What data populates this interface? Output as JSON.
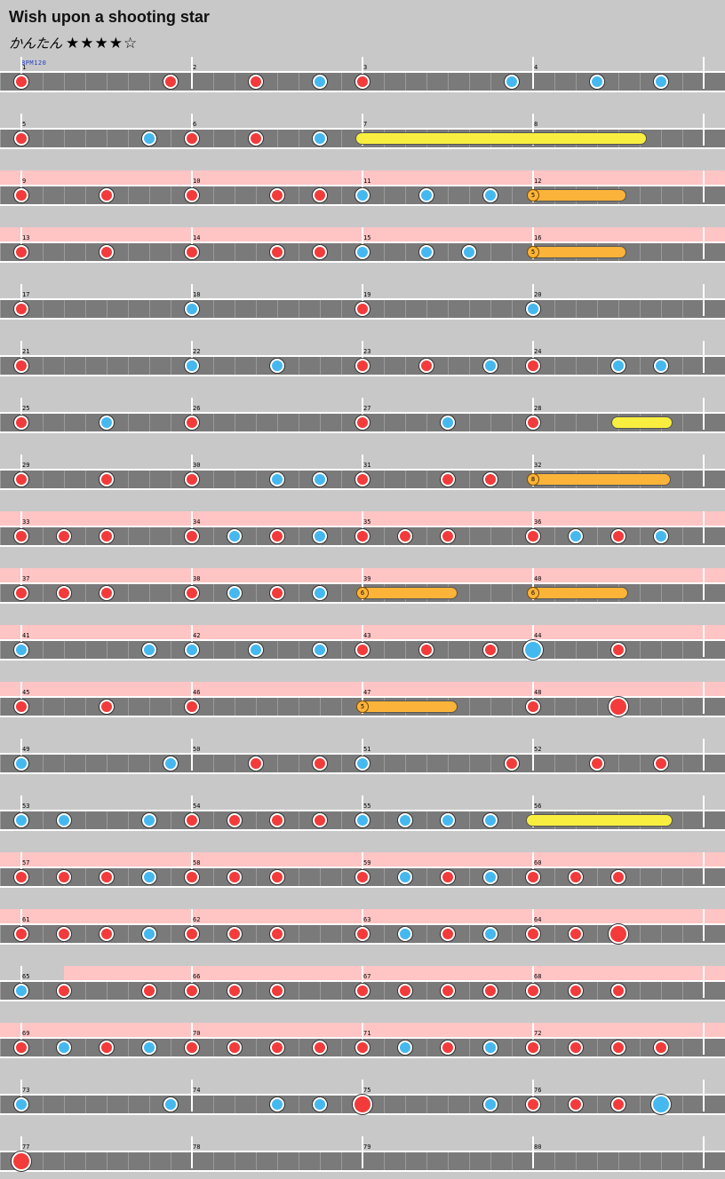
{
  "header": {
    "title": "Wish upon a shooting star",
    "difficulty": "かんたん",
    "stars": "★★★★☆",
    "bpm": "BPM120"
  },
  "colors": {
    "don": "#f33b3b",
    "ka": "#45b8f0",
    "roll": "#f8ee40",
    "balloon": "#fbb33a",
    "gogo": "#ffc4c4"
  },
  "rows": [
    {
      "measures": [
        1,
        2,
        3,
        4
      ],
      "gogo": false,
      "notes": [
        {
          "t": 0,
          "k": "d"
        },
        {
          "t": 7,
          "k": "d"
        },
        {
          "t": 11,
          "k": "d"
        },
        {
          "t": 14,
          "k": "k"
        },
        {
          "t": 16,
          "k": "d"
        },
        {
          "t": 23,
          "k": "k"
        },
        {
          "t": 27,
          "k": "k"
        },
        {
          "t": 30,
          "k": "k"
        }
      ]
    },
    {
      "measures": [
        5,
        6,
        7,
        8
      ],
      "gogo": false,
      "notes": [
        {
          "t": 0,
          "k": "d"
        },
        {
          "t": 6,
          "k": "k"
        },
        {
          "t": 8,
          "k": "d"
        },
        {
          "t": 11,
          "k": "d"
        },
        {
          "t": 14,
          "k": "k"
        }
      ],
      "rolls": [
        {
          "s": 16,
          "e": 29,
          "type": "yellow"
        }
      ]
    },
    {
      "measures": [
        9,
        10,
        11,
        12
      ],
      "gogo": true,
      "notes": [
        {
          "t": 0,
          "k": "d"
        },
        {
          "t": 4,
          "k": "d"
        },
        {
          "t": 8,
          "k": "d"
        },
        {
          "t": 12,
          "k": "d"
        },
        {
          "t": 14,
          "k": "d"
        },
        {
          "t": 16,
          "k": "k"
        },
        {
          "t": 19,
          "k": "k"
        },
        {
          "t": 22,
          "k": "k"
        }
      ],
      "rolls": [
        {
          "s": 24,
          "e": 28.2,
          "type": "balloon",
          "count": "5"
        }
      ]
    },
    {
      "measures": [
        13,
        14,
        15,
        16
      ],
      "gogo": true,
      "notes": [
        {
          "t": 0,
          "k": "d"
        },
        {
          "t": 4,
          "k": "d"
        },
        {
          "t": 8,
          "k": "d"
        },
        {
          "t": 12,
          "k": "d"
        },
        {
          "t": 14,
          "k": "d"
        },
        {
          "t": 16,
          "k": "k"
        },
        {
          "t": 19,
          "k": "k"
        },
        {
          "t": 21,
          "k": "k"
        }
      ],
      "rolls": [
        {
          "s": 24,
          "e": 28.2,
          "type": "balloon",
          "count": "5"
        }
      ]
    },
    {
      "measures": [
        17,
        18,
        19,
        20
      ],
      "gogo": false,
      "notes": [
        {
          "t": 0,
          "k": "d"
        },
        {
          "t": 8,
          "k": "k"
        },
        {
          "t": 16,
          "k": "d"
        },
        {
          "t": 24,
          "k": "k"
        }
      ]
    },
    {
      "measures": [
        21,
        22,
        23,
        24
      ],
      "gogo": false,
      "notes": [
        {
          "t": 0,
          "k": "d"
        },
        {
          "t": 8,
          "k": "k"
        },
        {
          "t": 12,
          "k": "k"
        },
        {
          "t": 16,
          "k": "d"
        },
        {
          "t": 19,
          "k": "d"
        },
        {
          "t": 22,
          "k": "k"
        },
        {
          "t": 24,
          "k": "d"
        },
        {
          "t": 28,
          "k": "k"
        },
        {
          "t": 30,
          "k": "k"
        }
      ]
    },
    {
      "measures": [
        25,
        26,
        27,
        28
      ],
      "gogo": false,
      "notes": [
        {
          "t": 0,
          "k": "d"
        },
        {
          "t": 4,
          "k": "k"
        },
        {
          "t": 8,
          "k": "d"
        },
        {
          "t": 16,
          "k": "d"
        },
        {
          "t": 20,
          "k": "k"
        },
        {
          "t": 24,
          "k": "d"
        }
      ],
      "rolls": [
        {
          "s": 28,
          "e": 30.2,
          "type": "yellow"
        }
      ]
    },
    {
      "measures": [
        29,
        30,
        31,
        32
      ],
      "gogo": false,
      "notes": [
        {
          "t": 0,
          "k": "d"
        },
        {
          "t": 4,
          "k": "d"
        },
        {
          "t": 8,
          "k": "d"
        },
        {
          "t": 12,
          "k": "k"
        },
        {
          "t": 14,
          "k": "k"
        },
        {
          "t": 16,
          "k": "d"
        },
        {
          "t": 20,
          "k": "d"
        },
        {
          "t": 22,
          "k": "d"
        }
      ],
      "rolls": [
        {
          "s": 24,
          "e": 30.3,
          "type": "balloon",
          "count": "8"
        }
      ]
    },
    {
      "measures": [
        33,
        34,
        35,
        36
      ],
      "gogo": true,
      "notes": [
        {
          "t": 0,
          "k": "d"
        },
        {
          "t": 2,
          "k": "d"
        },
        {
          "t": 4,
          "k": "d"
        },
        {
          "t": 8,
          "k": "d"
        },
        {
          "t": 10,
          "k": "k"
        },
        {
          "t": 12,
          "k": "d"
        },
        {
          "t": 14,
          "k": "k"
        },
        {
          "t": 16,
          "k": "d"
        },
        {
          "t": 18,
          "k": "d"
        },
        {
          "t": 20,
          "k": "d"
        },
        {
          "t": 24,
          "k": "d"
        },
        {
          "t": 26,
          "k": "k"
        },
        {
          "t": 28,
          "k": "d"
        },
        {
          "t": 30,
          "k": "k"
        }
      ]
    },
    {
      "measures": [
        37,
        38,
        39,
        40
      ],
      "gogo": true,
      "notes": [
        {
          "t": 0,
          "k": "d"
        },
        {
          "t": 2,
          "k": "d"
        },
        {
          "t": 4,
          "k": "d"
        },
        {
          "t": 8,
          "k": "d"
        },
        {
          "t": 10,
          "k": "k"
        },
        {
          "t": 12,
          "k": "d"
        },
        {
          "t": 14,
          "k": "k"
        }
      ],
      "rolls": [
        {
          "s": 16,
          "e": 20.3,
          "type": "balloon",
          "count": "6"
        },
        {
          "s": 24,
          "e": 28.3,
          "type": "balloon",
          "count": "6"
        }
      ]
    },
    {
      "measures": [
        41,
        42,
        43,
        44
      ],
      "gogo": true,
      "notes": [
        {
          "t": 0,
          "k": "k"
        },
        {
          "t": 6,
          "k": "k"
        },
        {
          "t": 8,
          "k": "k"
        },
        {
          "t": 11,
          "k": "k"
        },
        {
          "t": 14,
          "k": "k"
        },
        {
          "t": 16,
          "k": "d"
        },
        {
          "t": 19,
          "k": "d"
        },
        {
          "t": 22,
          "k": "d"
        },
        {
          "t": 24,
          "k": "K"
        },
        {
          "t": 28,
          "k": "d"
        }
      ]
    },
    {
      "measures": [
        45,
        46,
        47,
        48
      ],
      "gogo": true,
      "notes": [
        {
          "t": 0,
          "k": "d"
        },
        {
          "t": 4,
          "k": "d"
        },
        {
          "t": 8,
          "k": "d"
        },
        {
          "t": 24,
          "k": "d"
        },
        {
          "t": 28,
          "k": "D"
        }
      ],
      "rolls": [
        {
          "s": 16,
          "e": 20.3,
          "type": "balloon",
          "count": "5"
        }
      ]
    },
    {
      "measures": [
        49,
        50,
        51,
        52
      ],
      "gogo": false,
      "notes": [
        {
          "t": 0,
          "k": "k"
        },
        {
          "t": 7,
          "k": "k"
        },
        {
          "t": 11,
          "k": "d"
        },
        {
          "t": 14,
          "k": "d"
        },
        {
          "t": 16,
          "k": "k"
        },
        {
          "t": 23,
          "k": "d"
        },
        {
          "t": 27,
          "k": "d"
        },
        {
          "t": 30,
          "k": "d"
        }
      ]
    },
    {
      "measures": [
        53,
        54,
        55,
        56
      ],
      "gogo": false,
      "notes": [
        {
          "t": 0,
          "k": "k"
        },
        {
          "t": 2,
          "k": "k"
        },
        {
          "t": 6,
          "k": "k"
        },
        {
          "t": 8,
          "k": "d"
        },
        {
          "t": 10,
          "k": "d"
        },
        {
          "t": 12,
          "k": "d"
        },
        {
          "t": 14,
          "k": "d"
        },
        {
          "t": 16,
          "k": "k"
        },
        {
          "t": 18,
          "k": "k"
        },
        {
          "t": 20,
          "k": "k"
        },
        {
          "t": 22,
          "k": "k"
        }
      ],
      "rolls": [
        {
          "s": 24,
          "e": 30.2,
          "type": "yellow"
        }
      ]
    },
    {
      "measures": [
        57,
        58,
        59,
        60
      ],
      "gogo": true,
      "notes": [
        {
          "t": 0,
          "k": "d"
        },
        {
          "t": 2,
          "k": "d"
        },
        {
          "t": 4,
          "k": "d"
        },
        {
          "t": 6,
          "k": "k"
        },
        {
          "t": 8,
          "k": "d"
        },
        {
          "t": 10,
          "k": "d"
        },
        {
          "t": 12,
          "k": "d"
        },
        {
          "t": 16,
          "k": "d"
        },
        {
          "t": 18,
          "k": "k"
        },
        {
          "t": 20,
          "k": "d"
        },
        {
          "t": 22,
          "k": "k"
        },
        {
          "t": 24,
          "k": "d"
        },
        {
          "t": 26,
          "k": "d"
        },
        {
          "t": 28,
          "k": "d"
        }
      ]
    },
    {
      "measures": [
        61,
        62,
        63,
        64
      ],
      "gogo": true,
      "notes": [
        {
          "t": 0,
          "k": "d"
        },
        {
          "t": 2,
          "k": "d"
        },
        {
          "t": 4,
          "k": "d"
        },
        {
          "t": 6,
          "k": "k"
        },
        {
          "t": 8,
          "k": "d"
        },
        {
          "t": 10,
          "k": "d"
        },
        {
          "t": 12,
          "k": "d"
        },
        {
          "t": 16,
          "k": "d"
        },
        {
          "t": 18,
          "k": "k"
        },
        {
          "t": 20,
          "k": "d"
        },
        {
          "t": 22,
          "k": "k"
        },
        {
          "t": 24,
          "k": "d"
        },
        {
          "t": 26,
          "k": "d"
        },
        {
          "t": 28,
          "k": "D"
        }
      ]
    },
    {
      "measures": [
        65,
        66,
        67,
        68
      ],
      "gogo": true,
      "gogoStart": 2,
      "notes": [
        {
          "t": 0,
          "k": "k"
        },
        {
          "t": 2,
          "k": "d"
        },
        {
          "t": 6,
          "k": "d"
        },
        {
          "t": 8,
          "k": "d"
        },
        {
          "t": 10,
          "k": "d"
        },
        {
          "t": 12,
          "k": "d"
        },
        {
          "t": 16,
          "k": "d"
        },
        {
          "t": 18,
          "k": "d"
        },
        {
          "t": 20,
          "k": "d"
        },
        {
          "t": 22,
          "k": "d"
        },
        {
          "t": 24,
          "k": "d"
        },
        {
          "t": 26,
          "k": "d"
        },
        {
          "t": 28,
          "k": "d"
        }
      ]
    },
    {
      "measures": [
        69,
        70,
        71,
        72
      ],
      "gogo": true,
      "notes": [
        {
          "t": 0,
          "k": "d"
        },
        {
          "t": 2,
          "k": "k"
        },
        {
          "t": 4,
          "k": "d"
        },
        {
          "t": 6,
          "k": "k"
        },
        {
          "t": 8,
          "k": "d"
        },
        {
          "t": 10,
          "k": "d"
        },
        {
          "t": 12,
          "k": "d"
        },
        {
          "t": 14,
          "k": "d"
        },
        {
          "t": 16,
          "k": "d"
        },
        {
          "t": 18,
          "k": "k"
        },
        {
          "t": 20,
          "k": "d"
        },
        {
          "t": 22,
          "k": "k"
        },
        {
          "t": 24,
          "k": "d"
        },
        {
          "t": 26,
          "k": "d"
        },
        {
          "t": 28,
          "k": "d"
        },
        {
          "t": 30,
          "k": "d"
        }
      ]
    },
    {
      "measures": [
        73,
        74,
        75,
        76
      ],
      "gogo": false,
      "notes": [
        {
          "t": 0,
          "k": "k"
        },
        {
          "t": 7,
          "k": "k"
        },
        {
          "t": 12,
          "k": "k"
        },
        {
          "t": 14,
          "k": "k"
        },
        {
          "t": 16,
          "k": "D"
        },
        {
          "t": 22,
          "k": "k"
        },
        {
          "t": 24,
          "k": "d"
        },
        {
          "t": 26,
          "k": "d"
        },
        {
          "t": 28,
          "k": "d"
        },
        {
          "t": 30,
          "k": "K"
        }
      ]
    },
    {
      "measures": [
        77,
        78,
        79,
        80
      ],
      "gogo": false,
      "notes": [
        {
          "t": 0,
          "k": "D"
        }
      ]
    }
  ]
}
